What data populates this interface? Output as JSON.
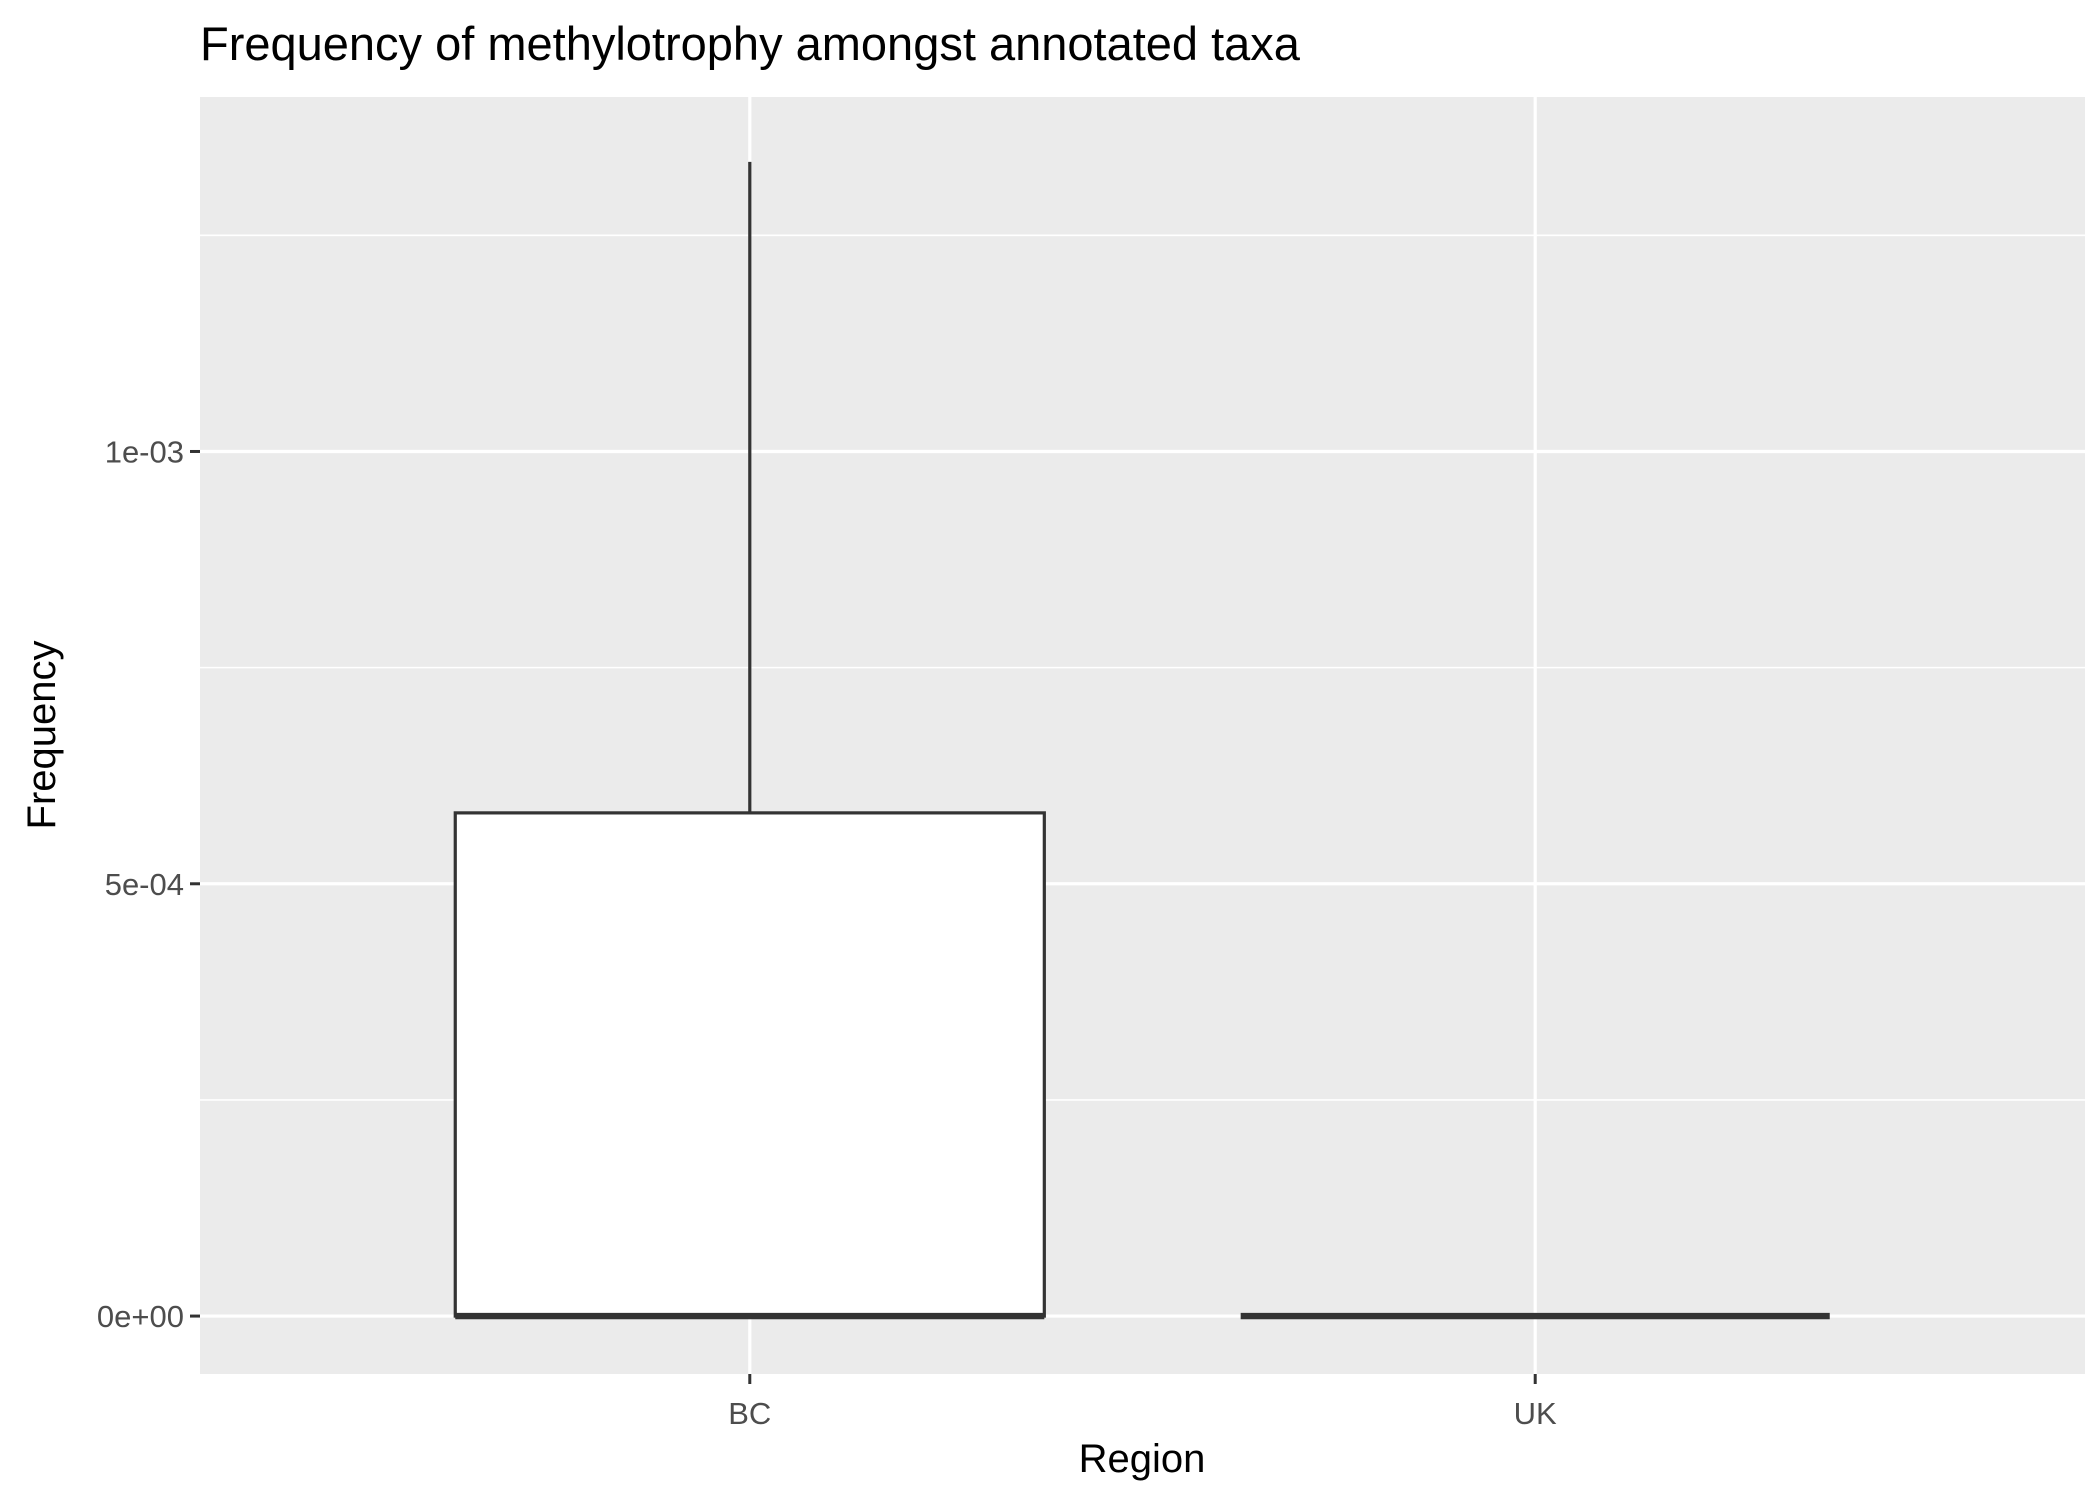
{
  "chart_data": {
    "type": "boxplot",
    "title": "Frequency of methylotrophy amongst annotated taxa",
    "xlabel": "Region",
    "ylabel": "Frequency",
    "categories": [
      "BC",
      "UK"
    ],
    "boxes": [
      {
        "category": "BC",
        "min": 0,
        "q1": 0,
        "median": 0,
        "q3": 0.000582,
        "max": 0.001335
      },
      {
        "category": "UK",
        "min": 0,
        "q1": 0,
        "median": 0,
        "q3": 0,
        "max": 0
      }
    ],
    "ylim": [
      -6.7e-05,
      0.00141
    ],
    "y_ticks": [
      {
        "value": 0,
        "label": "0e+00"
      },
      {
        "value": 0.0005,
        "label": "5e-04"
      },
      {
        "value": 0.001,
        "label": "1e-03"
      }
    ],
    "y_minor_ticks": [
      0.00025,
      0.00075,
      0.00125
    ],
    "grid": true,
    "colors": {
      "panel_background": "#ebebeb",
      "grid": "#ffffff",
      "box_fill": "#ffffff",
      "box_stroke": "#333333",
      "tick_text": "#4d4d4d"
    }
  }
}
